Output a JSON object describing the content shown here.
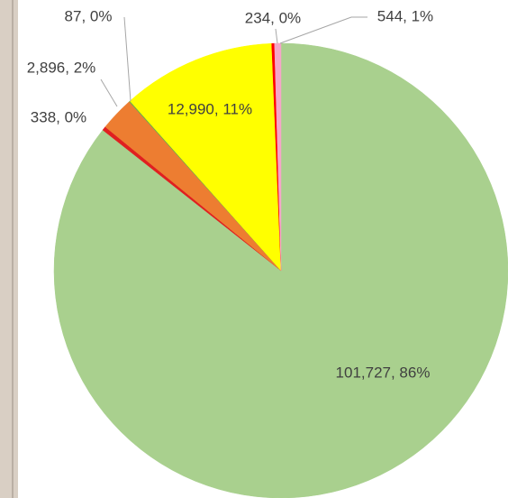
{
  "chart_data": {
    "type": "pie",
    "values": [
      101727,
      338,
      2896,
      87,
      12990,
      234,
      544
    ],
    "value_labels": [
      "101,727, 86%",
      "338, 0%",
      "2,896, 2%",
      "87, 0%",
      "12,990, 11%",
      "234, 0%",
      "544, 1%"
    ],
    "colors": [
      "#a9d08e",
      "#e02020",
      "#ed7d31",
      "#70ad47",
      "#ffff00",
      "#ff0000",
      "#f4a6c8"
    ]
  }
}
